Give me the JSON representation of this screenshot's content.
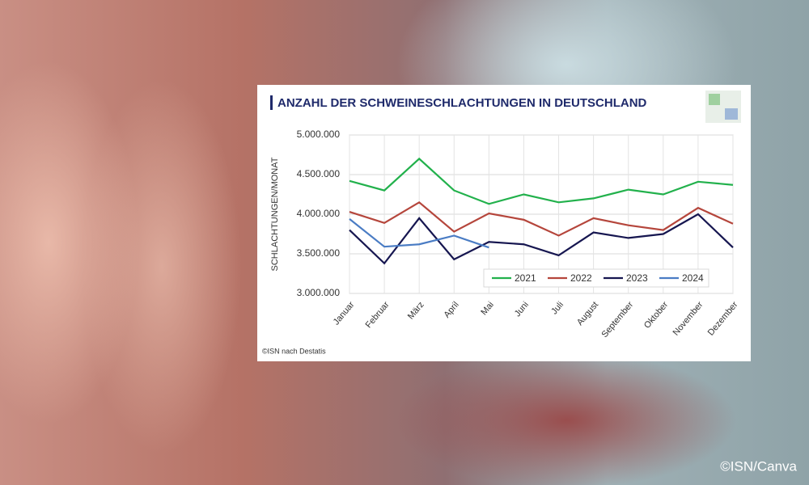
{
  "chart_data": {
    "type": "line",
    "title": "ANZAHL DER SCHWEINESCHLACHTUNGEN IN DEUTSCHLAND",
    "y_label": "SCHLACHTUNGEN/MONAT",
    "source": "©ISN nach Destatis",
    "credit": "©ISN/Canva",
    "categories": [
      "Januar",
      "Februar",
      "März",
      "April",
      "Mai",
      "Juni",
      "Juli",
      "August",
      "September",
      "Oktober",
      "November",
      "Dezember"
    ],
    "series": [
      {
        "name": "2021",
        "color": "#22b14c",
        "values": [
          4420000,
          4300000,
          4700000,
          4300000,
          4130000,
          4250000,
          4150000,
          4200000,
          4310000,
          4250000,
          4410000,
          4370000
        ]
      },
      {
        "name": "2022",
        "color": "#b5463c",
        "values": [
          4030000,
          3890000,
          4150000,
          3780000,
          4010000,
          3930000,
          3730000,
          3950000,
          3860000,
          3800000,
          4080000,
          3880000
        ]
      },
      {
        "name": "2023",
        "color": "#161650",
        "values": [
          3800000,
          3380000,
          3950000,
          3430000,
          3650000,
          3620000,
          3480000,
          3770000,
          3700000,
          3750000,
          4000000,
          3580000
        ]
      },
      {
        "name": "2024",
        "color": "#4a7cc4",
        "values": [
          3940000,
          3590000,
          3620000,
          3730000,
          3580000,
          null,
          null,
          null,
          null,
          null,
          null,
          null
        ]
      }
    ],
    "ylim": [
      3000000,
      5000000
    ],
    "yticks": [
      {
        "value": 3000000,
        "label": "3.000.000"
      },
      {
        "value": 3500000,
        "label": "3.500.000"
      },
      {
        "value": 4000000,
        "label": "4.000.000"
      },
      {
        "value": 4500000,
        "label": "4.500.000"
      },
      {
        "value": 5000000,
        "label": "5.000.000"
      }
    ],
    "grid": true,
    "legend": "lower right"
  }
}
